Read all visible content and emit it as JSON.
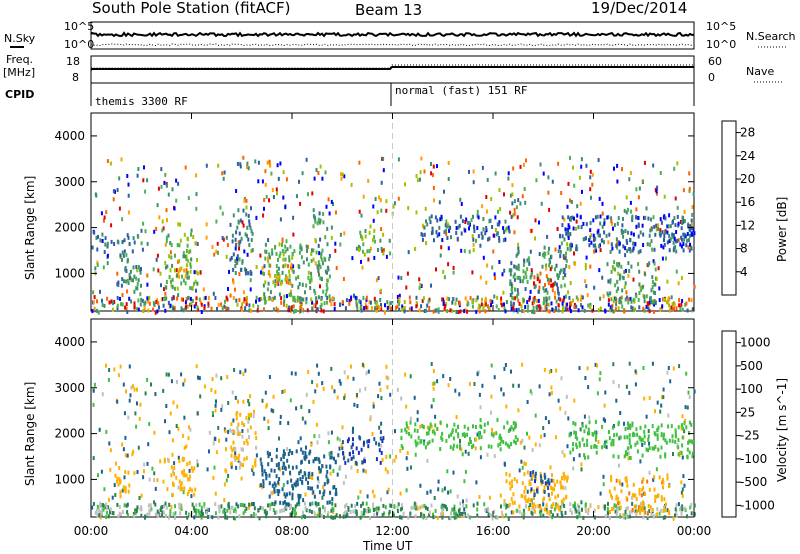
{
  "header": {
    "station_title": "South Pole Station (fitACF)",
    "beam_label": "Beam 13",
    "date_label": "19/Dec/2014"
  },
  "top_strip": {
    "nsky_label": "N.Sky",
    "nsky_ticks": [
      "10^5",
      "10^0"
    ],
    "nsearch_label": "N.Search",
    "nsearch_ticks": [
      "10^5",
      "10^0"
    ],
    "freq_label": "Freq.",
    "freq_unit": "[MHz]",
    "freq_ticks": [
      "18",
      "8"
    ],
    "nave_label": "Nave",
    "nave_ticks": [
      "60",
      "0"
    ],
    "cpid_label": "CPID",
    "cpid_segments": [
      {
        "label": "themis 3300 RF",
        "start_hour": 0
      },
      {
        "label": "normal (fast) 151 RF",
        "start_hour": 12
      }
    ]
  },
  "colors": {
    "power_scale": [
      "#0000ff",
      "#2f5fa0",
      "#3f8f6f",
      "#4fb04f",
      "#a0c000",
      "#ffa000",
      "#ff6000",
      "#e00000"
    ],
    "velocity_scale": [
      "#1a30c0",
      "#1a6090",
      "#2a8050",
      "#40c040",
      "#c0c0c0",
      "#ffb000",
      "#ff7000",
      "#e00000"
    ]
  },
  "chart_data": [
    {
      "type": "heatmap",
      "panel": "power",
      "title": "",
      "xlabel": "",
      "ylabel": "Slant Range [km]",
      "x_range": [
        "00:00",
        "24:00"
      ],
      "y_range": [
        180,
        4500
      ],
      "y_ticks": [
        "1000",
        "2000",
        "3000",
        "4000"
      ],
      "colorbar_label": "Power [dB]",
      "colorbar_ticks": [
        "4",
        "8",
        "12",
        "16",
        "20",
        "24",
        "28"
      ],
      "colorbar_range": [
        0,
        30
      ],
      "regions": [
        {
          "t0": 0.0,
          "t1": 0.9,
          "r0": 1500,
          "r1": 1850,
          "v": 6
        },
        {
          "t0": 1.0,
          "t1": 2.0,
          "r0": 700,
          "r1": 1900,
          "v": 8
        },
        {
          "t0": 2.9,
          "t1": 4.2,
          "r0": 700,
          "r1": 1900,
          "v": 14
        },
        {
          "t0": 3.3,
          "t1": 3.9,
          "r0": 850,
          "r1": 1250,
          "v": 20
        },
        {
          "t0": 5.5,
          "t1": 6.4,
          "r0": 1000,
          "r1": 2600,
          "v": 7
        },
        {
          "t0": 5.8,
          "t1": 6.5,
          "r0": 3300,
          "r1": 3500,
          "v": 8
        },
        {
          "t0": 6.8,
          "t1": 9.5,
          "r0": 400,
          "r1": 1700,
          "v": 12
        },
        {
          "t0": 7.0,
          "t1": 8.0,
          "r0": 800,
          "r1": 1400,
          "v": 20
        },
        {
          "t0": 8.8,
          "t1": 9.4,
          "r0": 1800,
          "r1": 2400,
          "v": 10
        },
        {
          "t0": 10.6,
          "t1": 11.6,
          "r0": 1400,
          "r1": 1950,
          "v": 14
        },
        {
          "t0": 13.1,
          "t1": 16.8,
          "r0": 1750,
          "r1": 2300,
          "v": 5
        },
        {
          "t0": 16.6,
          "t1": 18.9,
          "r0": 400,
          "r1": 1600,
          "v": 10
        },
        {
          "t0": 17.5,
          "t1": 18.4,
          "r0": 650,
          "r1": 1150,
          "v": 26
        },
        {
          "t0": 18.6,
          "t1": 23.9,
          "r0": 1500,
          "r1": 2300,
          "v": 6
        },
        {
          "t0": 20.5,
          "t1": 22.5,
          "r0": 400,
          "r1": 1300,
          "v": 12
        },
        {
          "t0": 22.6,
          "t1": 24.0,
          "r0": 1500,
          "r1": 2300,
          "v": 5
        }
      ]
    },
    {
      "type": "heatmap",
      "panel": "velocity",
      "title": "",
      "xlabel": "Time UT",
      "ylabel": "Slant Range [km]",
      "x_ticks": [
        "00:00",
        "04:00",
        "08:00",
        "12:00",
        "16:00",
        "20:00",
        "00:00"
      ],
      "y_range": [
        180,
        4500
      ],
      "y_ticks": [
        "1000",
        "2000",
        "3000",
        "4000"
      ],
      "colorbar_label": "Velocity [m s^-1]",
      "colorbar_ticks": [
        "1000",
        "500",
        "100",
        "25",
        "-25",
        "-100",
        "-500",
        "-1000"
      ],
      "regions": [
        {
          "t0": 0.9,
          "t1": 1.5,
          "r0": 600,
          "r1": 1400,
          "v": -300
        },
        {
          "t0": 3.0,
          "t1": 4.2,
          "r0": 700,
          "r1": 1600,
          "v": -150
        },
        {
          "t0": 5.5,
          "t1": 6.6,
          "r0": 1300,
          "r1": 2500,
          "v": -120
        },
        {
          "t0": 6.7,
          "t1": 9.8,
          "r0": 500,
          "r1": 1700,
          "v": 300
        },
        {
          "t0": 9.8,
          "t1": 11.6,
          "r0": 1400,
          "r1": 1950,
          "v": 500
        },
        {
          "t0": 12.3,
          "t1": 17.0,
          "r0": 1700,
          "r1": 2300,
          "v": 0
        },
        {
          "t0": 16.6,
          "t1": 19.0,
          "r0": 300,
          "r1": 1200,
          "v": -300
        },
        {
          "t0": 17.3,
          "t1": 18.3,
          "r0": 700,
          "r1": 1300,
          "v": 400
        },
        {
          "t0": 19.0,
          "t1": 24.0,
          "r0": 1500,
          "r1": 2300,
          "v": 0
        },
        {
          "t0": 20.6,
          "t1": 23.0,
          "r0": 300,
          "r1": 1100,
          "v": -400
        }
      ]
    }
  ]
}
